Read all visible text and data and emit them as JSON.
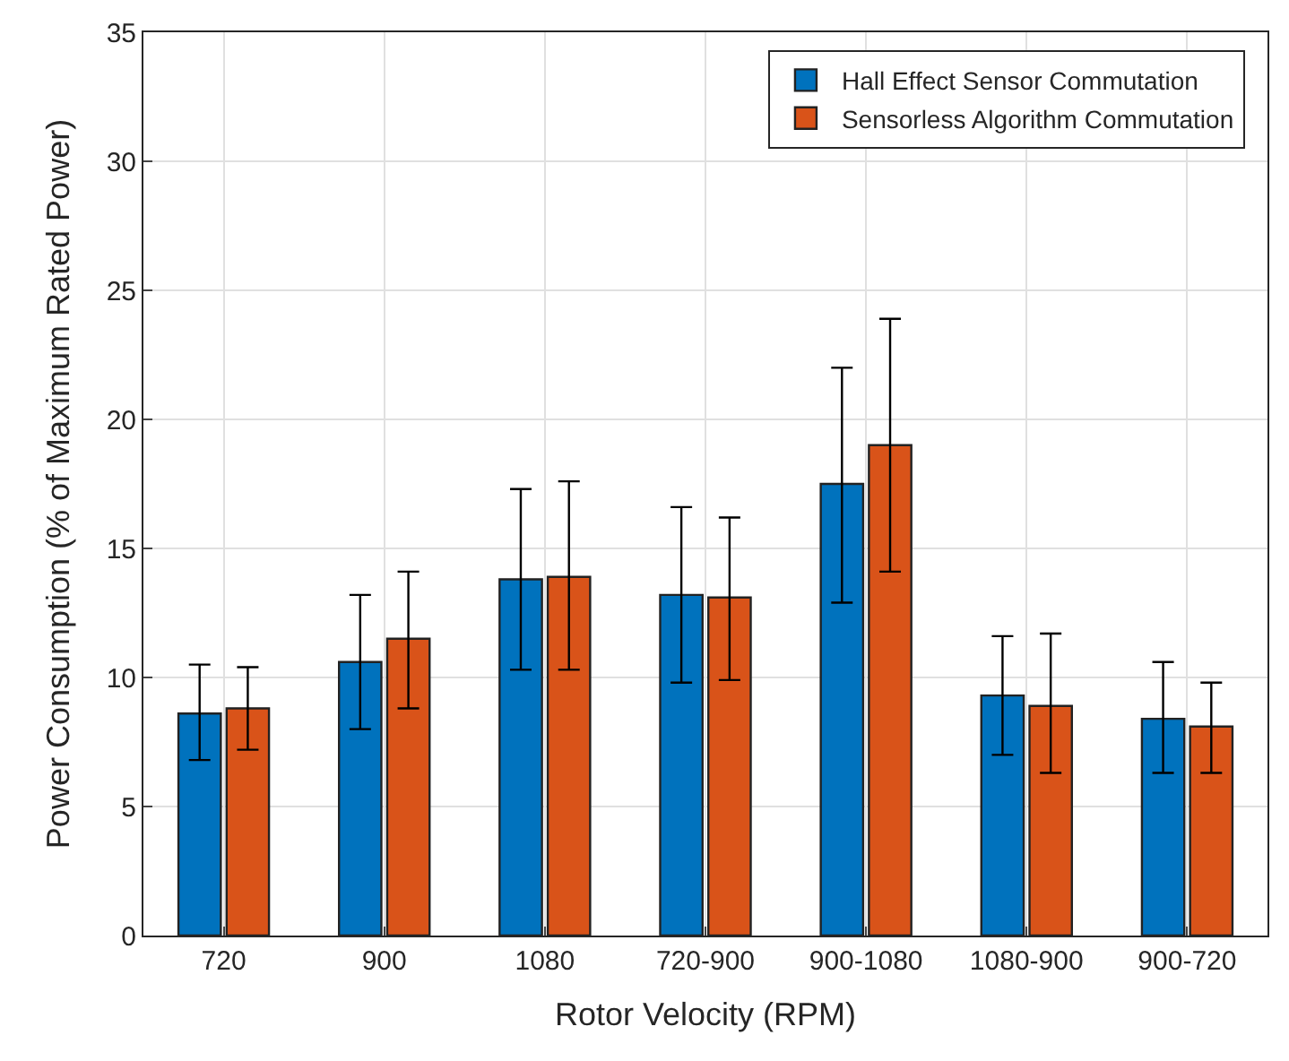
{
  "chart_data": {
    "type": "bar",
    "xlabel": "Rotor Velocity (RPM)",
    "ylabel": "Power Consumption (% of Maximum Rated Power)",
    "categories": [
      "720",
      "900",
      "1080",
      "720-900",
      "900-1080",
      "1080-900",
      "900-720"
    ],
    "series": [
      {
        "name": "Hall Effect Sensor Commutation",
        "color": "#0072bd",
        "values": [
          8.6,
          10.6,
          13.8,
          13.2,
          17.5,
          9.3,
          8.4
        ],
        "errors": [
          [
            6.8,
            10.5
          ],
          [
            8.0,
            13.2
          ],
          [
            10.3,
            17.3
          ],
          [
            9.8,
            16.6
          ],
          [
            12.9,
            22.0
          ],
          [
            7.0,
            11.6
          ],
          [
            6.3,
            10.6
          ]
        ]
      },
      {
        "name": "Sensorless Algorithm Commutation",
        "color": "#d95319",
        "values": [
          8.8,
          11.5,
          13.9,
          13.1,
          19.0,
          8.9,
          8.1
        ],
        "errors": [
          [
            7.2,
            10.4
          ],
          [
            8.8,
            14.1
          ],
          [
            10.3,
            17.6
          ],
          [
            9.9,
            16.2
          ],
          [
            14.1,
            23.9
          ],
          [
            6.3,
            11.7
          ],
          [
            6.3,
            9.8
          ]
        ]
      }
    ],
    "ylim": [
      0,
      35
    ],
    "yticks": [
      0,
      5,
      10,
      15,
      20,
      25,
      30,
      35
    ],
    "grid": true,
    "legend": "top right"
  }
}
